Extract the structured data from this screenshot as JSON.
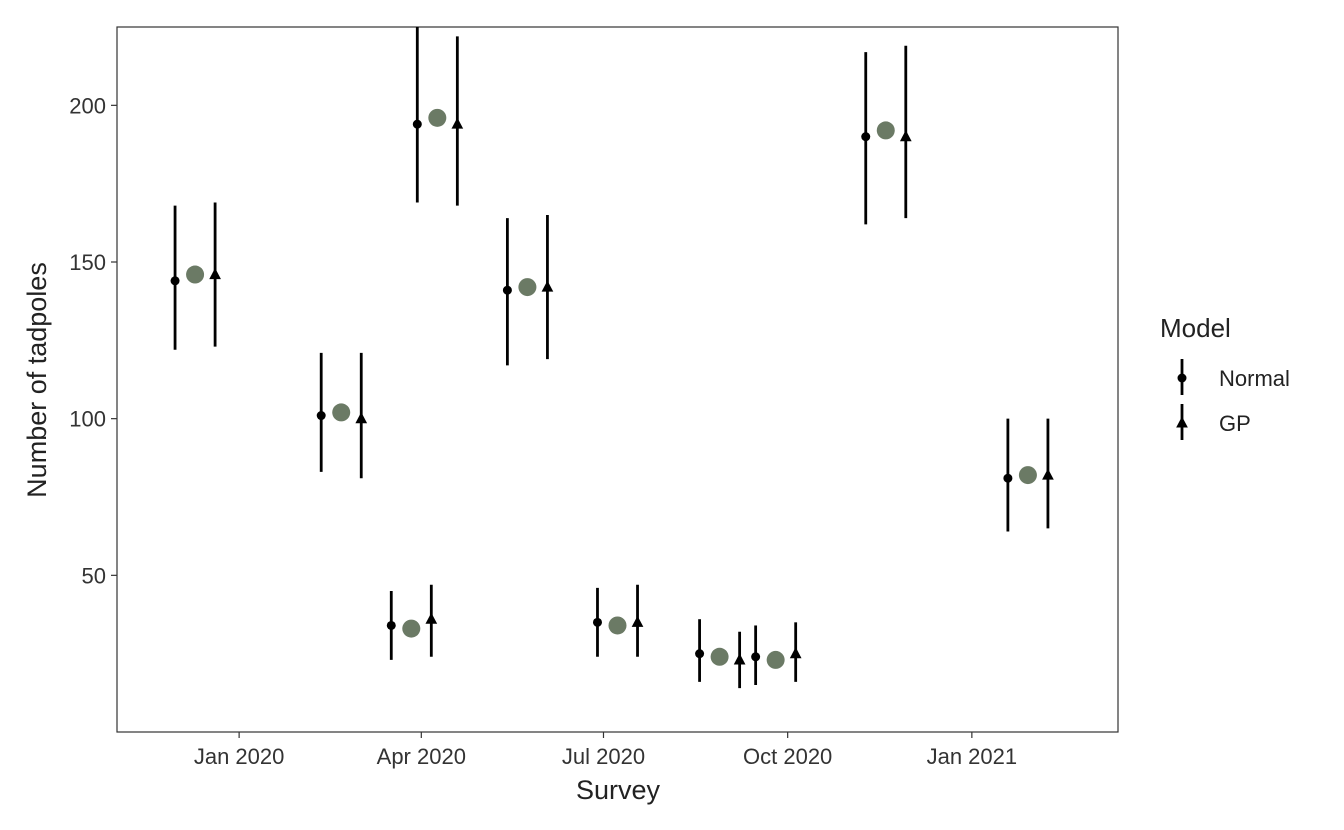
{
  "chart_data": {
    "type": "scatter",
    "xlabel": "Survey",
    "ylabel": "Number of tadpoles",
    "xlim": [
      "2019-11-01",
      "2021-03-15"
    ],
    "ylim": [
      0,
      225
    ],
    "x_ticks": [
      {
        "date": "2020-01-01",
        "label": "Jan 2020"
      },
      {
        "date": "2020-04-01",
        "label": "Apr 2020"
      },
      {
        "date": "2020-07-01",
        "label": "Jul 2020"
      },
      {
        "date": "2020-10-01",
        "label": "Oct 2020"
      },
      {
        "date": "2021-01-01",
        "label": "Jan 2021"
      }
    ],
    "y_ticks": [
      50,
      100,
      150,
      200
    ],
    "grid": false,
    "legend": {
      "title": "Model",
      "position": "right",
      "items": [
        {
          "label": "Normal",
          "shape": "circle"
        },
        {
          "label": "GP",
          "shape": "triangle"
        }
      ]
    },
    "observed_color": "#6b7a65",
    "series": [
      {
        "name": "Normal",
        "shape": "circle",
        "points": [
          {
            "x": "2019-11-30",
            "y": 144,
            "low": 122,
            "high": 168
          },
          {
            "x": "2020-02-11",
            "y": 101,
            "low": 83,
            "high": 121
          },
          {
            "x": "2020-03-17",
            "y": 34,
            "low": 23,
            "high": 45
          },
          {
            "x": "2020-03-30",
            "y": 194,
            "low": 169,
            "high": 225
          },
          {
            "x": "2020-05-14",
            "y": 141,
            "low": 117,
            "high": 164
          },
          {
            "x": "2020-06-28",
            "y": 35,
            "low": 24,
            "high": 46
          },
          {
            "x": "2020-08-18",
            "y": 25,
            "low": 16,
            "high": 36
          },
          {
            "x": "2020-09-15",
            "y": 24,
            "low": 15,
            "high": 34
          },
          {
            "x": "2020-11-09",
            "y": 190,
            "low": 162,
            "high": 217
          },
          {
            "x": "2021-01-19",
            "y": 81,
            "low": 64,
            "high": 100
          }
        ]
      },
      {
        "name": "GP",
        "shape": "triangle",
        "points": [
          {
            "x": "2019-12-20",
            "y": 146,
            "low": 123,
            "high": 169
          },
          {
            "x": "2020-03-02",
            "y": 100,
            "low": 81,
            "high": 121
          },
          {
            "x": "2020-04-06",
            "y": 36,
            "low": 24,
            "high": 47
          },
          {
            "x": "2020-04-19",
            "y": 194,
            "low": 168,
            "high": 222
          },
          {
            "x": "2020-06-03",
            "y": 142,
            "low": 119,
            "high": 165
          },
          {
            "x": "2020-07-18",
            "y": 35,
            "low": 24,
            "high": 47
          },
          {
            "x": "2020-09-07",
            "y": 23,
            "low": 14,
            "high": 32
          },
          {
            "x": "2020-10-05",
            "y": 25,
            "low": 16,
            "high": 35
          },
          {
            "x": "2020-11-29",
            "y": 190,
            "low": 164,
            "high": 219
          },
          {
            "x": "2021-02-08",
            "y": 82,
            "low": 65,
            "high": 100
          }
        ]
      },
      {
        "name": "",
        "shape": "observed",
        "points": [
          {
            "x": "2019-12-10",
            "y": 146
          },
          {
            "x": "2020-02-21",
            "y": 102
          },
          {
            "x": "2020-03-27",
            "y": 33
          },
          {
            "x": "2020-04-09",
            "y": 196
          },
          {
            "x": "2020-05-24",
            "y": 142
          },
          {
            "x": "2020-07-08",
            "y": 34
          },
          {
            "x": "2020-08-28",
            "y": 24
          },
          {
            "x": "2020-09-25",
            "y": 23
          },
          {
            "x": "2020-11-19",
            "y": 192
          },
          {
            "x": "2021-01-29",
            "y": 82
          }
        ]
      }
    ]
  }
}
